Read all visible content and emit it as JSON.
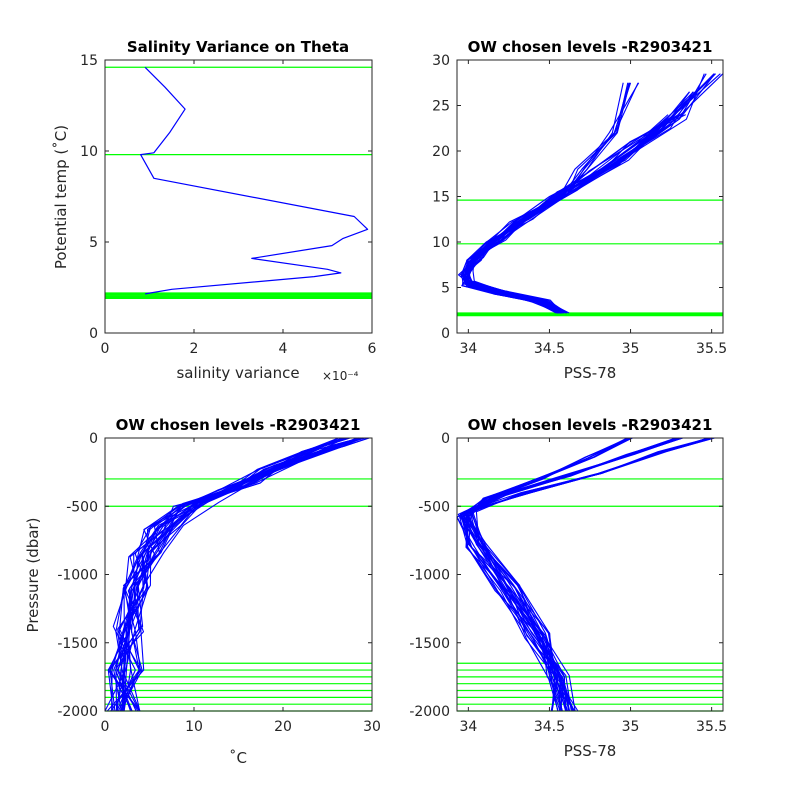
{
  "figure": {
    "background": "#ffffff"
  },
  "colors": {
    "profile": "#0000ff",
    "level": "#00ff00",
    "axis": "#262626"
  },
  "chart_data": [
    {
      "id": "tl",
      "type": "line",
      "title": "Salinity Variance on Theta",
      "xlabel": "salinity variance",
      "x_exponent": "×10⁻⁴",
      "ylabel": "Potential temp (˚C)",
      "xlim": [
        0,
        6
      ],
      "ylim": [
        0,
        15
      ],
      "xticks": [
        0,
        2,
        4,
        6
      ],
      "yticks": [
        0,
        5,
        10,
        15
      ],
      "x_tick_labels": [
        "0",
        "2",
        "4",
        "6"
      ],
      "y_tick_labels": [
        "0",
        "5",
        "10",
        "15"
      ],
      "series": [
        {
          "x": [
            0.9,
            1.35,
            1.8,
            1.45,
            1.1,
            0.8,
            1.1,
            5.6,
            5.9,
            5.35,
            5.1,
            3.3,
            5.0,
            5.3,
            4.7,
            1.5,
            0.9
          ],
          "y": [
            14.6,
            13.5,
            12.3,
            11.0,
            9.9,
            9.8,
            8.5,
            6.4,
            5.7,
            5.2,
            4.8,
            4.1,
            3.5,
            3.3,
            3.1,
            2.4,
            2.15
          ]
        }
      ],
      "levels": [
        14.6,
        9.8,
        2.2,
        2.15,
        2.1,
        2.05,
        2.0,
        1.95,
        1.9
      ]
    },
    {
      "id": "tr",
      "type": "line",
      "title": "OW chosen levels -R2903421",
      "xlabel": "PSS-78",
      "ylabel": "",
      "xlim": [
        33.93,
        35.57
      ],
      "ylim": [
        0,
        30
      ],
      "xticks": [
        34,
        34.5,
        35,
        35.5
      ],
      "yticks": [
        0,
        5,
        10,
        15,
        20,
        25,
        30
      ],
      "x_tick_labels": [
        "34",
        "34.5",
        "35",
        "35.5"
      ],
      "y_tick_labels": [
        "0",
        "5",
        "10",
        "15",
        "20",
        "25",
        "30"
      ],
      "series": [
        {
          "x": [
            34.58,
            34.45,
            34.2,
            34.0,
            33.98,
            34.03,
            34.15,
            34.35,
            34.6,
            34.9,
            35.2,
            35.4
          ],
          "y": [
            2.2,
            3.5,
            4.5,
            5.5,
            6.5,
            8.0,
            10.0,
            12.5,
            15.5,
            18.5,
            22.5,
            26.5
          ]
        },
        {
          "x": [
            34.56,
            34.42,
            34.18,
            33.99,
            33.97,
            34.02,
            34.12,
            34.3,
            34.55,
            34.8,
            35.05,
            35.3
          ],
          "y": [
            2.2,
            3.4,
            4.3,
            5.2,
            6.2,
            7.8,
            9.8,
            12.2,
            15.0,
            17.8,
            21.0,
            24.0
          ]
        },
        {
          "x": [
            34.6,
            34.48,
            34.22,
            34.02,
            33.99,
            34.05,
            34.18,
            34.38,
            34.62,
            34.95,
            35.3,
            35.52
          ],
          "y": [
            2.2,
            3.6,
            4.6,
            5.7,
            6.8,
            8.3,
            10.2,
            12.8,
            15.7,
            19.0,
            23.5,
            28.5
          ]
        },
        {
          "x": [
            34.57,
            34.44,
            34.2,
            34.0,
            33.98,
            34.04,
            34.16,
            34.34,
            34.58,
            34.7,
            34.9,
            35.0
          ],
          "y": [
            2.2,
            3.5,
            4.4,
            5.4,
            6.4,
            8.0,
            10.0,
            12.4,
            15.2,
            18.0,
            22.0,
            27.5
          ]
        }
      ],
      "levels": [
        14.6,
        9.8,
        2.2,
        2.15,
        2.1,
        2.05,
        2.0,
        1.95,
        1.9
      ]
    },
    {
      "id": "bl",
      "type": "line",
      "title": "OW chosen levels -R2903421",
      "xlabel": "˚C",
      "ylabel": "Pressure (dbar)",
      "xlim": [
        0,
        30
      ],
      "ylim": [
        -2000,
        0
      ],
      "xticks": [
        0,
        10,
        20,
        30
      ],
      "yticks": [
        -2000,
        -1500,
        -1000,
        -500,
        0
      ],
      "x_tick_labels": [
        "0",
        "10",
        "20",
        "30"
      ],
      "y_tick_labels": [
        "-2000",
        "-1500",
        "-1000",
        "-500",
        "0"
      ],
      "series": [
        {
          "x": [
            28.5,
            25,
            20,
            15,
            10,
            6.5,
            4.5,
            3.2,
            2.6,
            2.2,
            2.0
          ],
          "y": [
            0,
            -80,
            -200,
            -350,
            -480,
            -650,
            -850,
            -1100,
            -1400,
            -1700,
            -2000
          ]
        },
        {
          "x": [
            29.0,
            26,
            21,
            16.5,
            11.5,
            7.5,
            5.2,
            3.6,
            2.8,
            2.4,
            2.1
          ],
          "y": [
            0,
            -60,
            -180,
            -330,
            -470,
            -640,
            -840,
            -1080,
            -1380,
            -1700,
            -2000
          ]
        },
        {
          "x": [
            27.0,
            23,
            18,
            13.5,
            9.0,
            5.8,
            4.0,
            2.9,
            2.4,
            2.1,
            1.9
          ],
          "y": [
            0,
            -100,
            -230,
            -380,
            -500,
            -670,
            -870,
            -1120,
            -1420,
            -1700,
            -2000
          ]
        }
      ],
      "levels": [
        -300,
        -500,
        -1650,
        -1700,
        -1750,
        -1800,
        -1850,
        -1900,
        -1950,
        -2000
      ]
    },
    {
      "id": "br",
      "type": "line",
      "title": "OW chosen levels -R2903421",
      "xlabel": "PSS-78",
      "ylabel": "",
      "xlim": [
        33.93,
        35.57
      ],
      "ylim": [
        -2000,
        0
      ],
      "xticks": [
        34,
        34.5,
        35,
        35.5
      ],
      "yticks": [
        -2000,
        -1500,
        -1000,
        -500,
        0
      ],
      "x_tick_labels": [
        "34",
        "34.5",
        "35",
        "35.5"
      ],
      "y_tick_labels": [
        "-2000",
        "-1500",
        "-1000",
        "-500",
        "0"
      ],
      "series": [
        {
          "x": [
            35.3,
            35.0,
            34.6,
            34.2,
            33.98,
            34.05,
            34.25,
            34.42,
            34.54,
            34.6
          ],
          "y": [
            0,
            -120,
            -280,
            -420,
            -560,
            -780,
            -1100,
            -1450,
            -1750,
            -2000
          ]
        },
        {
          "x": [
            35.5,
            35.2,
            34.8,
            34.35,
            34.02,
            34.08,
            34.28,
            34.45,
            34.57,
            34.62
          ],
          "y": [
            0,
            -100,
            -260,
            -400,
            -540,
            -770,
            -1080,
            -1430,
            -1740,
            -2000
          ]
        },
        {
          "x": [
            35.0,
            34.75,
            34.45,
            34.12,
            33.96,
            34.02,
            34.22,
            34.4,
            34.52,
            34.58
          ],
          "y": [
            0,
            -140,
            -300,
            -440,
            -580,
            -800,
            -1120,
            -1470,
            -1760,
            -2000
          ]
        }
      ],
      "levels": [
        -300,
        -500,
        -1650,
        -1700,
        -1750,
        -1800,
        -1850,
        -1900,
        -1950,
        -2000
      ]
    }
  ]
}
